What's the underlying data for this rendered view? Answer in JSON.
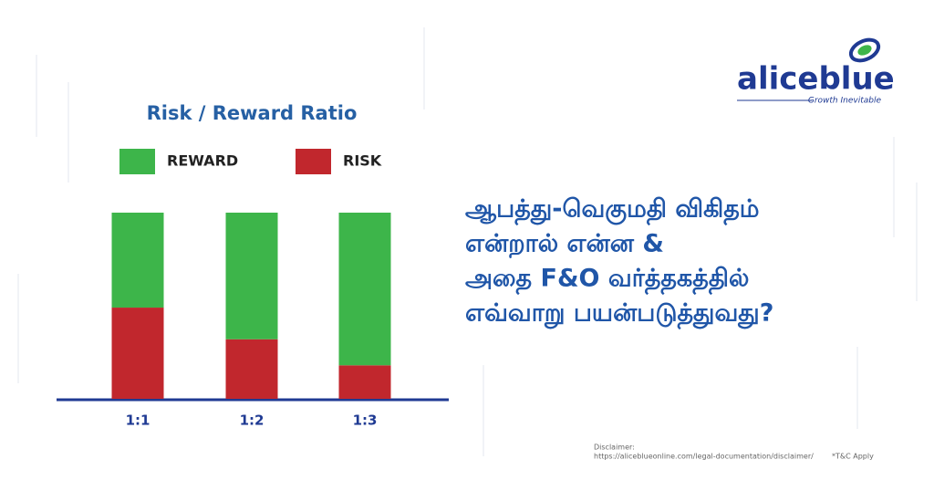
{
  "chart_data": {
    "type": "stacked-bar",
    "title": "Risk / Reward Ratio",
    "categories": [
      "1:1",
      "1:2",
      "1:3"
    ],
    "series": [
      {
        "name": "REWARD",
        "color": "#3db54a",
        "values": [
          51,
          68,
          82
        ]
      },
      {
        "name": "RISK",
        "color": "#c1272d",
        "values": [
          49,
          32,
          18
        ]
      }
    ],
    "ylim": [
      0,
      100
    ]
  },
  "logo": {
    "name": "aliceblue",
    "tagline": "Growth Inevitable"
  },
  "heading": {
    "lines": [
      "ஆபத்து-வெகுமதி விகிதம்",
      "என்றால் என்ன &",
      "அதை F&O வர்த்தகத்தில்",
      "எவ்வாறு பயன்படுத்துவது?"
    ]
  },
  "footer": {
    "disclaimer_label": "Disclaimer:",
    "disclaimer_url": "https://aliceblueonline.com/legal-documentation/disclaimer/",
    "terms": "*T&C Apply"
  }
}
